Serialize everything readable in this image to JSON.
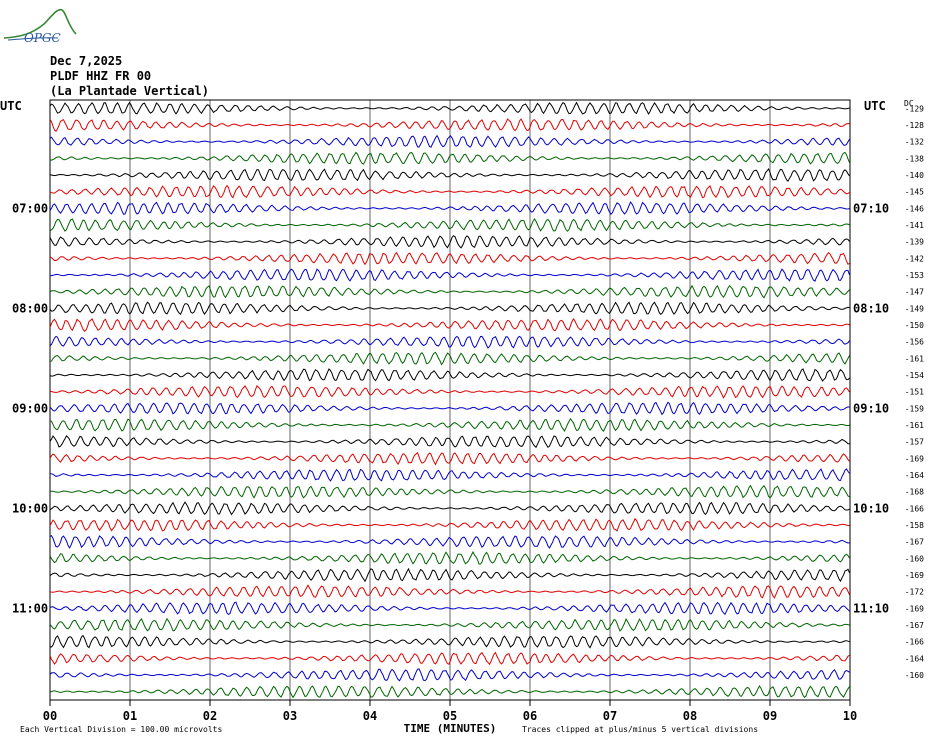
{
  "header": {
    "date": "Dec 7,2025",
    "station": "PLDF HHZ FR 00",
    "location": "(La Plantade Vertical)"
  },
  "logo": {
    "text": "OPGC"
  },
  "footer": {
    "scale_note": "Each Vertical Division =  100.00 microvolts",
    "clip_note": "Traces clipped at plus/minus 5 vertical divisions"
  },
  "colors": {
    "trace": [
      "#000000",
      "#e00000",
      "#0000cc",
      "#006400"
    ],
    "grid": "#000000"
  },
  "chart_data": {
    "type": "line",
    "xlabel": "TIME (MINUTES)",
    "x_ticks": [
      "00",
      "01",
      "02",
      "03",
      "04",
      "05",
      "06",
      "07",
      "08",
      "09",
      "10"
    ],
    "xlim": [
      0,
      10
    ],
    "left_axis_title": "UTC",
    "right_axis_title": "UTC",
    "dc_title": "DC",
    "rows": 36,
    "left_hour_labels": [
      {
        "row": 6,
        "label": "07:00"
      },
      {
        "row": 12,
        "label": "08:00"
      },
      {
        "row": 18,
        "label": "09:00"
      },
      {
        "row": 24,
        "label": "10:00"
      },
      {
        "row": 30,
        "label": "11:00"
      }
    ],
    "right_hour_labels": [
      {
        "row": 6,
        "label": "07:10"
      },
      {
        "row": 12,
        "label": "08:10"
      },
      {
        "row": 18,
        "label": "09:10"
      },
      {
        "row": 24,
        "label": "10:10"
      },
      {
        "row": 30,
        "label": "11:10"
      }
    ],
    "dc_offsets": [
      -129,
      -128,
      -132,
      -138,
      -140,
      -145,
      -146,
      -141,
      -139,
      -142,
      -153,
      -147,
      -149,
      -150,
      -156,
      -161,
      -154,
      -151,
      -159,
      -161,
      -157,
      -169,
      -164,
      -168,
      -166,
      -158,
      -167,
      -160,
      -169,
      -172,
      -169,
      -167,
      -166,
      -164,
      -160
    ]
  }
}
